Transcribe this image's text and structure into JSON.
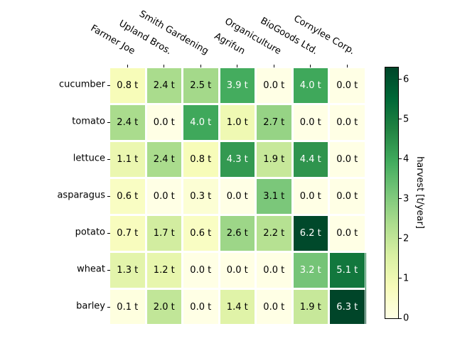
{
  "chart_data": {
    "type": "heatmap",
    "columns": [
      "Farmer Joe",
      "Upland Bros.",
      "Smith Gardening",
      "Agrifun",
      "Organiculture",
      "BioGoods Ltd.",
      "Cornylee Corp."
    ],
    "rows": [
      "cucumber",
      "tomato",
      "lettuce",
      "asparagus",
      "potato",
      "wheat",
      "barley"
    ],
    "values": [
      [
        0.8,
        2.4,
        2.5,
        3.9,
        0.0,
        4.0,
        0.0
      ],
      [
        2.4,
        0.0,
        4.0,
        1.0,
        2.7,
        0.0,
        0.0
      ],
      [
        1.1,
        2.4,
        0.8,
        4.3,
        1.9,
        4.4,
        0.0
      ],
      [
        0.6,
        0.0,
        0.3,
        0.0,
        3.1,
        0.0,
        0.0
      ],
      [
        0.7,
        1.7,
        0.6,
        2.6,
        2.2,
        6.2,
        0.0
      ],
      [
        1.3,
        1.2,
        0.0,
        0.0,
        0.0,
        3.2,
        5.1
      ],
      [
        0.1,
        2.0,
        0.0,
        1.4,
        0.0,
        1.9,
        6.3
      ]
    ],
    "cell_value_suffix": " t",
    "value_decimals": 1,
    "colormap": {
      "name": "YlGn",
      "stops": [
        "#ffffe5",
        "#f7fcb9",
        "#d9f0a3",
        "#addd8e",
        "#78c679",
        "#41ab5d",
        "#238443",
        "#006837",
        "#004529"
      ]
    },
    "colorbar": {
      "label": "harvest [t/year]",
      "ticks": [
        0,
        1,
        2,
        3,
        4,
        5,
        6
      ],
      "vmin": 0,
      "vmax": 6.3
    },
    "annotation_text_colors": {
      "low": "#000000",
      "high": "#ffffff"
    },
    "grid_line_color": "#ffffff",
    "background": "#ffffff",
    "legend_position": "right-colorbar",
    "grid": "white-minor-lines",
    "xlabel": "",
    "ylabel": "",
    "title": ""
  }
}
